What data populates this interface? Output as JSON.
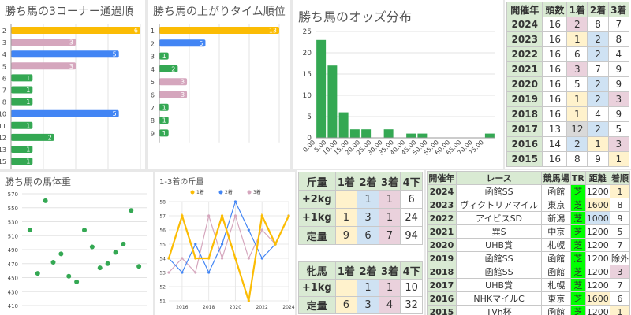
{
  "colors": {
    "green": "#34a853",
    "blue": "#4285f4",
    "yellow": "#fbbc04",
    "pink": "#d5a6bd",
    "grey": "#a0a0a0"
  },
  "panels": {
    "corner": {
      "title": "勝ち馬の3コーナー通過順",
      "chart_data": {
        "type": "bar",
        "orientation": "horizontal",
        "categories": [
          "2",
          "3",
          "4",
          "5",
          "6",
          "7",
          "8",
          "10",
          "11",
          "12",
          "13",
          "15"
        ],
        "values": [
          6,
          3,
          5,
          3,
          1,
          1,
          1,
          5,
          1,
          2,
          1,
          1
        ],
        "bar_colors": [
          "yellow",
          "pink",
          "blue",
          "pink",
          "green",
          "green",
          "green",
          "blue",
          "green",
          "green",
          "green",
          "green"
        ],
        "xlim": [
          0,
          6
        ]
      }
    },
    "last3f": {
      "title": "勝ち馬の上がりタイム順位",
      "chart_data": {
        "type": "bar",
        "orientation": "horizontal",
        "categories": [
          "1",
          "2",
          "3",
          "4",
          "5",
          "6",
          "7",
          "8",
          "9"
        ],
        "values": [
          13,
          5,
          1,
          2,
          3,
          3,
          1,
          1,
          1
        ],
        "bar_colors": [
          "yellow",
          "blue",
          "green",
          "green",
          "pink",
          "pink",
          "green",
          "green",
          "green"
        ],
        "xlim": [
          0,
          13
        ]
      }
    },
    "odds": {
      "title": "勝ち馬のオッズ分布",
      "chart_data": {
        "type": "bar",
        "categories": [
          "0.00",
          "5.00",
          "10.00",
          "15.00",
          "20.00",
          "25.00",
          "30.00",
          "35.00",
          "40.00",
          "45.00",
          "50.00",
          "55.00",
          "60.00",
          "65.00",
          "70.00",
          "75.00"
        ],
        "values": [
          23,
          17,
          6,
          2,
          2,
          0,
          2,
          0,
          1,
          1,
          0,
          0,
          0,
          0,
          0,
          1
        ],
        "yticks": [
          "0",
          "5",
          "10",
          "15",
          "20",
          "25"
        ],
        "ylim": [
          0,
          25
        ]
      }
    },
    "weight": {
      "title": "勝ち馬の馬体重",
      "chart_data": {
        "type": "scatter",
        "yticks": [
          "410",
          "430",
          "450",
          "470",
          "490",
          "510",
          "530",
          "550",
          "570"
        ],
        "ylim": [
          410,
          570
        ],
        "points": [
          [
            1,
            518
          ],
          [
            2,
            456
          ],
          [
            3,
            560
          ],
          [
            4,
            472
          ],
          [
            5,
            484
          ],
          [
            6,
            452
          ],
          [
            7,
            444
          ],
          [
            8,
            518
          ],
          [
            9,
            494
          ],
          [
            10,
            464
          ],
          [
            11,
            470
          ],
          [
            12,
            486
          ],
          [
            13,
            498
          ],
          [
            14,
            546
          ],
          [
            15,
            466
          ]
        ],
        "xlim": [
          0,
          16
        ]
      }
    },
    "kinryo": {
      "title": "1-3着の斤量",
      "chart_data": {
        "type": "line",
        "x": [
          2015,
          2016,
          2017,
          2018,
          2019,
          2020,
          2021,
          2022,
          2023,
          2024
        ],
        "xticks": [
          "2016",
          "2018",
          "2020",
          "2022",
          "2024"
        ],
        "yticks": [
          "51",
          "52",
          "53",
          "54",
          "55",
          "56",
          "57",
          "58"
        ],
        "ylim": [
          51,
          58
        ],
        "series": [
          {
            "name": "1着",
            "color": "yellow",
            "values": [
              54,
              57,
              54,
              54,
              57,
              54,
              51,
              57,
              55,
              57
            ]
          },
          {
            "name": "2着",
            "color": "blue",
            "values": [
              54,
              53,
              55,
              53,
              55,
              58,
              56,
              54,
              55,
              57
            ]
          },
          {
            "name": "3着",
            "color": "pink",
            "values": [
              53,
              54,
              53,
              57,
              54,
              57,
              54,
              56,
              55,
              57
            ]
          }
        ]
      }
    },
    "years": {
      "headers": [
        "開催年",
        "頭数",
        "1着",
        "2着",
        "3着"
      ],
      "rows": [
        [
          "2024",
          "16",
          "2",
          "8",
          "7"
        ],
        [
          "2023",
          "16",
          "1",
          "2",
          "8"
        ],
        [
          "2022",
          "16",
          "6",
          "2",
          "4"
        ],
        [
          "2021",
          "16",
          "3",
          "7",
          "9"
        ],
        [
          "2020",
          "16",
          "5",
          "2",
          "9"
        ],
        [
          "2019",
          "16",
          "1",
          "2",
          "3"
        ],
        [
          "2018",
          "16",
          "1",
          "4",
          "9"
        ],
        [
          "2017",
          "13",
          "12",
          "2",
          "5"
        ],
        [
          "2016",
          "14",
          "2",
          "1",
          "3"
        ],
        [
          "2015",
          "16",
          "8",
          "9",
          "1"
        ]
      ],
      "cell_colors": [
        [
          "hdr",
          "wh",
          "pink",
          "wh",
          "wh"
        ],
        [
          "hdr",
          "wh",
          "yel",
          "blue",
          "wh"
        ],
        [
          "hdr",
          "wh",
          "wh",
          "blue",
          "wh"
        ],
        [
          "hdr",
          "wh",
          "pink",
          "wh",
          "wh"
        ],
        [
          "hdr",
          "wh",
          "wh",
          "blue",
          "wh"
        ],
        [
          "hdr",
          "wh",
          "yel",
          "blue",
          "pink"
        ],
        [
          "hdr",
          "wh",
          "yel",
          "wh",
          "wh"
        ],
        [
          "hdr",
          "wh",
          "grey",
          "blue",
          "wh"
        ],
        [
          "hdr",
          "wh",
          "blue",
          "yel",
          "pink"
        ],
        [
          "hdr",
          "wh",
          "wh",
          "wh",
          "yel"
        ]
      ]
    },
    "weight_table": {
      "headers": [
        "斤量",
        "1着",
        "2着",
        "3着",
        "4下"
      ],
      "rows": [
        [
          "+2kg",
          "",
          "1",
          "1",
          "6"
        ],
        [
          "+1kg",
          "1",
          "3",
          "1",
          "24"
        ],
        [
          "定量",
          "9",
          "6",
          "7",
          "94"
        ]
      ]
    },
    "mare_table": {
      "headers": [
        "牝馬",
        "1着",
        "2着",
        "3着",
        "4下"
      ],
      "rows": [
        [
          "+1kg",
          "",
          "1",
          "1",
          "10"
        ],
        [
          "定量",
          "6",
          "3",
          "4",
          "32"
        ]
      ]
    },
    "races": {
      "headers": [
        "開催年",
        "レース",
        "競馬場",
        "TR",
        "距離",
        "着順"
      ],
      "rows": [
        [
          "2024",
          "函館SS",
          "函館",
          "芝",
          "1200",
          "1"
        ],
        [
          "2023",
          "ヴィクトリアマイル",
          "東京",
          "芝",
          "1600",
          "8"
        ],
        [
          "2022",
          "アイビスSD",
          "新潟",
          "芝",
          "1000",
          "9"
        ],
        [
          "2021",
          "巽S",
          "中京",
          "芝",
          "1200",
          "5"
        ],
        [
          "2020",
          "UHB賞",
          "札幌",
          "芝",
          "1200",
          "7"
        ],
        [
          "2019",
          "函館SS",
          "函館",
          "芝",
          "1200",
          "除外"
        ],
        [
          "2018",
          "函館SS",
          "函館",
          "芝",
          "1200",
          "3"
        ],
        [
          "2017",
          "UHB賞",
          "札幌",
          "芝",
          "1200",
          "7"
        ],
        [
          "2016",
          "NHKマイルC",
          "東京",
          "芝",
          "1600",
          "6"
        ],
        [
          "2015",
          "TVh杯",
          "函館",
          "芝",
          "1200",
          "1"
        ]
      ],
      "cell_colors": [
        [
          "hdr",
          "wh",
          "wh",
          "grn",
          "wh",
          "yel"
        ],
        [
          "hdr",
          "wh",
          "wh",
          "grn",
          "yel",
          "wh"
        ],
        [
          "hdr",
          "wh",
          "wh",
          "grn",
          "blue",
          "wh"
        ],
        [
          "hdr",
          "wh",
          "wh",
          "grn",
          "wh",
          "wh"
        ],
        [
          "hdr",
          "wh",
          "wh",
          "grn",
          "wh",
          "wh"
        ],
        [
          "hdr",
          "wh",
          "wh",
          "grn",
          "wh",
          "wh"
        ],
        [
          "hdr",
          "wh",
          "wh",
          "grn",
          "wh",
          "pink"
        ],
        [
          "hdr",
          "wh",
          "wh",
          "grn",
          "wh",
          "wh"
        ],
        [
          "hdr",
          "wh",
          "wh",
          "grn",
          "yel",
          "wh"
        ],
        [
          "hdr",
          "wh",
          "wh",
          "grn",
          "wh",
          "yel"
        ]
      ]
    }
  }
}
